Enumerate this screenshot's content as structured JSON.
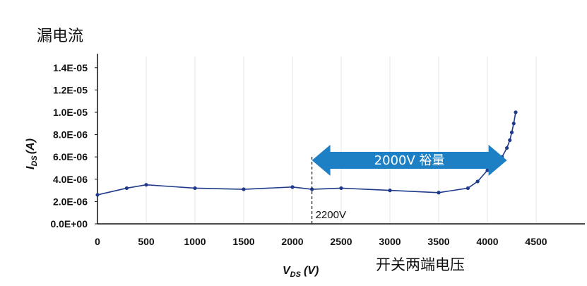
{
  "chart_data": {
    "type": "line",
    "title_cn": "漏电流",
    "xlabel": "V",
    "xlabel_sub": "DS",
    "xlabel_unit": "(V)",
    "xlabel_cn": "开关两端电压",
    "ylabel": "I",
    "ylabel_sub": "DS",
    "ylabel_unit": "(A)",
    "xlim": [
      0,
      5000
    ],
    "ylim": [
      0,
      1.5e-05
    ],
    "x_ticks": [
      "0",
      "500",
      "1000",
      "1500",
      "2000",
      "2500",
      "3000",
      "3500",
      "4000",
      "4500"
    ],
    "y_ticks": [
      "0.0E+00",
      "2.0E-06",
      "4.0E-06",
      "6.0E-06",
      "8.0E-06",
      "1.0E-05",
      "1.2E-05",
      "1.4E-05"
    ],
    "grid": "vertical",
    "annotations": {
      "marker_label": "2200V",
      "marker_x": 2200,
      "arrow_label": "2000V 裕量",
      "arrow_from_x": 2200,
      "arrow_to_x": 4200
    },
    "series": [
      {
        "color": "#1f3a8a",
        "x": [
          0,
          300,
          500,
          1000,
          1500,
          2000,
          2200,
          2500,
          3000,
          3500,
          3800,
          3900,
          4000,
          4050,
          4100,
          4150,
          4200,
          4230,
          4250,
          4270,
          4290
        ],
        "y": [
          2.6e-06,
          3.2e-06,
          3.5e-06,
          3.2e-06,
          3.1e-06,
          3.3e-06,
          3.1e-06,
          3.2e-06,
          3e-06,
          2.8e-06,
          3.2e-06,
          3.8e-06,
          4.8e-06,
          5e-06,
          5.2e-06,
          6e-06,
          6.8e-06,
          7.5e-06,
          8.2e-06,
          9e-06,
          1e-05
        ]
      }
    ]
  }
}
